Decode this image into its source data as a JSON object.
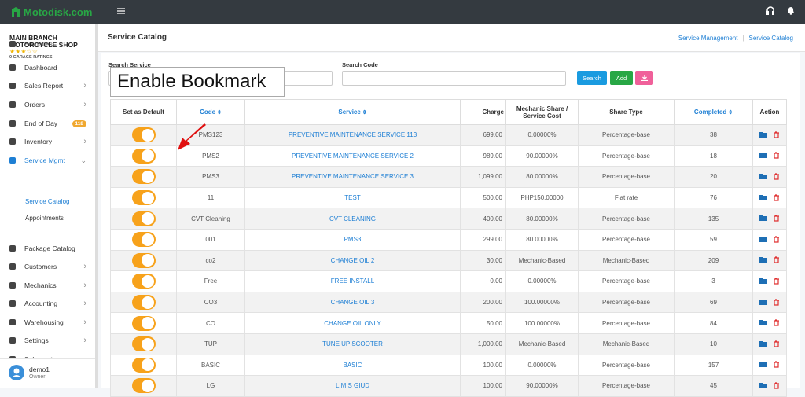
{
  "topbar": {
    "logo": "Motodisk.com"
  },
  "sidebar": {
    "shop_name": "MAIN BRANCH MOTORCYCLE SHOP",
    "ratings": "0 GARAGE RATINGS",
    "menu": [
      {
        "label": "Branches"
      },
      {
        "label": "Dashboard"
      },
      {
        "label": "Sales Report",
        "expandable": true
      },
      {
        "label": "Orders",
        "expandable": true
      },
      {
        "label": "End of Day",
        "badge": "118"
      },
      {
        "label": "Inventory",
        "expandable": true
      },
      {
        "label": "Service Mgmt",
        "expandable": true,
        "active": true,
        "children": [
          "Service Catalog",
          "Appointments"
        ]
      },
      {
        "label": "Package Catalog"
      },
      {
        "label": "Customers",
        "expandable": true
      },
      {
        "label": "Mechanics",
        "expandable": true
      },
      {
        "label": "Accounting",
        "expandable": true
      },
      {
        "label": "Warehousing",
        "expandable": true
      },
      {
        "label": "Settings",
        "expandable": true
      },
      {
        "label": "Subscription"
      }
    ],
    "user": {
      "name": "demo1",
      "role": "Owner"
    }
  },
  "page": {
    "title": "Service Catalog",
    "breadcrumb": [
      "Service Management",
      "Service Catalog"
    ]
  },
  "search": {
    "service_label": "Search Service",
    "code_label": "Search Code",
    "buttons": [
      "Search",
      "Add"
    ]
  },
  "overlay": "Enable Bookmark",
  "table": {
    "headers": [
      "Set as Default",
      "Code",
      "Service",
      "Charge",
      "Mechanic Share / Service Cost",
      "Share Type",
      "Completed",
      "Action"
    ],
    "rows": [
      [
        "PMS123",
        "PREVENTIVE MAINTENANCE SERVICE 113",
        "699.00",
        "0.00000%",
        "Percentage-base",
        "38"
      ],
      [
        "PMS2",
        "PREVENTIVE MAINTENANCE SERVICE 2",
        "989.00",
        "90.00000%",
        "Percentage-base",
        "18"
      ],
      [
        "PMS3",
        "PREVENTIVE MAINTENANCE SERVICE 3",
        "1,099.00",
        "80.00000%",
        "Percentage-base",
        "20"
      ],
      [
        "11",
        "TEST",
        "500.00",
        "PHP150.00000",
        "Flat rate",
        "76"
      ],
      [
        "CVT Cleaning",
        "CVT CLEANING",
        "400.00",
        "80.00000%",
        "Percentage-base",
        "135"
      ],
      [
        "001",
        "PMS3",
        "299.00",
        "80.00000%",
        "Percentage-base",
        "59"
      ],
      [
        "co2",
        "CHANGE OIL 2",
        "30.00",
        "Mechanic-Based",
        "Mechanic-Based",
        "209"
      ],
      [
        "Free",
        "FREE INSTALL",
        "0.00",
        "0.00000%",
        "Percentage-base",
        "3"
      ],
      [
        "CO3",
        "CHANGE OIL 3",
        "200.00",
        "100.00000%",
        "Percentage-base",
        "69"
      ],
      [
        "CO",
        "CHANGE OIL ONLY",
        "50.00",
        "100.00000%",
        "Percentage-base",
        "84"
      ],
      [
        "TUP",
        "TUNE UP SCOOTER",
        "1,000.00",
        "Mechanic-Based",
        "Mechanic-Based",
        "10"
      ],
      [
        "BASIC",
        "BASIC",
        "100.00",
        "0.00000%",
        "Percentage-base",
        "157"
      ],
      [
        "LG",
        "LIMIS GIUD",
        "100.00",
        "90.00000%",
        "Percentage-base",
        "45"
      ]
    ]
  }
}
